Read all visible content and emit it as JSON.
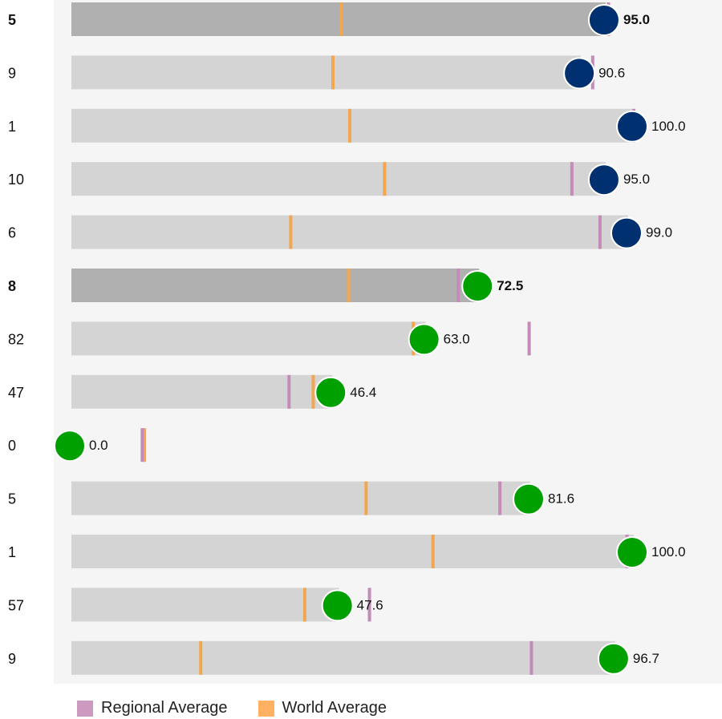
{
  "chart_data": {
    "type": "bar",
    "xlim": [
      0,
      100
    ],
    "rows": [
      {
        "rank": "5",
        "value": 95.0,
        "label": "95.0",
        "regional": 95.5,
        "world": 48.0,
        "highlight": true,
        "dot_color": "#00306f"
      },
      {
        "rank": "9",
        "value": 90.6,
        "label": "90.6",
        "regional": 92.7,
        "world": 46.5,
        "highlight": false,
        "dot_color": "#00306f"
      },
      {
        "rank": "1",
        "value": 100.0,
        "label": "100.0",
        "regional": 100.0,
        "world": 49.5,
        "highlight": false,
        "dot_color": "#00306f"
      },
      {
        "rank": "10",
        "value": 95.0,
        "label": "95.0",
        "regional": 89.0,
        "world": 55.7,
        "highlight": false,
        "dot_color": "#00306f"
      },
      {
        "rank": "6",
        "value": 99.0,
        "label": "99.0",
        "regional": 94.0,
        "world": 39.0,
        "highlight": false,
        "dot_color": "#00306f"
      },
      {
        "rank": "8",
        "value": 72.5,
        "label": "72.5",
        "regional": 68.8,
        "world": 49.3,
        "highlight": true,
        "dot_color": "#00a000"
      },
      {
        "rank": "82",
        "value": 63.0,
        "label": "63.0",
        "regional": 81.4,
        "world": 60.8,
        "highlight": false,
        "dot_color": "#00a000"
      },
      {
        "rank": "47",
        "value": 46.4,
        "label": "46.4",
        "regional": 38.7,
        "world": 43.0,
        "highlight": false,
        "dot_color": "#00a000"
      },
      {
        "rank": "0",
        "value": 0.0,
        "label": "0.0",
        "regional": 12.6,
        "world": 13.0,
        "highlight": false,
        "dot_color": "#00a000",
        "no_bar": true
      },
      {
        "rank": "5",
        "value": 81.6,
        "label": "81.6",
        "regional": 76.2,
        "world": 52.4,
        "highlight": false,
        "dot_color": "#00a000"
      },
      {
        "rank": "1",
        "value": 100.0,
        "label": "100.0",
        "regional": 98.8,
        "world": 64.3,
        "highlight": false,
        "dot_color": "#00a000"
      },
      {
        "rank": "57",
        "value": 47.6,
        "label": "47.6",
        "regional": 53.0,
        "world": 41.5,
        "highlight": false,
        "dot_color": "#00a000"
      },
      {
        "rank": "9",
        "value": 96.7,
        "label": "96.7",
        "regional": 81.8,
        "world": 23.0,
        "highlight": false,
        "dot_color": "#00a000"
      }
    ],
    "legend": [
      {
        "label": "Regional Average",
        "color": "#cc99c0"
      },
      {
        "label": "World Average",
        "color": "#ffb060"
      }
    ],
    "colors": {
      "background_panel": "#f5f5f5",
      "bar": "#d4d4d4",
      "bar_highlight": "#b0b0b0",
      "regional_marker": "#c48bb8",
      "world_marker": "#f3a64f"
    }
  }
}
